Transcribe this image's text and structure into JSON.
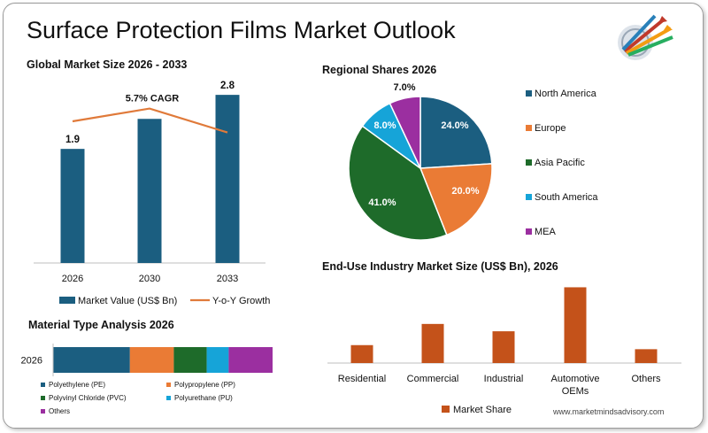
{
  "title": "Surface Protection Films Market Outlook",
  "website": "www.marketmindsadvisory.com",
  "colors": {
    "market_value": "#1b5e80",
    "growth_line": "#e07a3a",
    "north_america": "#1b5e80",
    "europe": "#ea7b35",
    "asia_pacific": "#1e6b2a",
    "south_america": "#16a4d8",
    "mea": "#9b2fa0",
    "end_use": "#c4521a"
  },
  "global": {
    "title": "Global Market Size 2026 - 2033",
    "cagr_label": "5.7% CAGR",
    "legend_value": "Market Value (US$ Bn)",
    "legend_growth": "Y-o-Y Growth"
  },
  "regional": {
    "title": "Regional Shares 2026"
  },
  "material": {
    "title": "Material Type Analysis 2026",
    "legend": [
      "Polyethylene (PE)",
      "Polypropylene (PP)",
      "Polyvinyl Chloride (PVC)",
      "Polyurethane (PU)",
      "Others"
    ]
  },
  "enduse": {
    "title": "End-Use Industry Market Size (US$ Bn), 2026",
    "legend": "Market Share"
  },
  "chart_data": [
    {
      "type": "bar",
      "title": "Global Market Size 2026 - 2033",
      "categories": [
        "2026",
        "2030",
        "2033"
      ],
      "series": [
        {
          "name": "Market Value (US$ Bn)",
          "values": [
            1.9,
            2.4,
            2.8
          ],
          "labels": [
            "1.9",
            "",
            "2.8"
          ]
        },
        {
          "name": "Y-o-Y Growth",
          "type": "line",
          "values": [
            0.85,
            0.93,
            0.78
          ]
        }
      ],
      "annotation": "5.7% CAGR",
      "ylim": [
        0,
        3.2
      ]
    },
    {
      "type": "pie",
      "title": "Regional Shares 2026",
      "categories": [
        "North America",
        "Europe",
        "Asia Pacific",
        "South America",
        "MEA"
      ],
      "values": [
        24.0,
        20.0,
        41.0,
        8.0,
        7.0
      ],
      "labels": [
        "24.0%",
        "20.0%",
        "41.0%",
        "8.0%",
        "7.0%"
      ],
      "legend": "right"
    },
    {
      "type": "bar",
      "orientation": "horizontal-stacked",
      "title": "Material Type Analysis 2026",
      "categories": [
        "2026"
      ],
      "series": [
        {
          "name": "Polyethylene (PE)",
          "values": [
            35
          ]
        },
        {
          "name": "Polypropylene (PP)",
          "values": [
            20
          ]
        },
        {
          "name": "Polyvinyl Chloride (PVC)",
          "values": [
            15
          ]
        },
        {
          "name": "Polyurethane (PU)",
          "values": [
            10
          ]
        },
        {
          "name": "Others",
          "values": [
            20
          ]
        }
      ]
    },
    {
      "type": "bar",
      "title": "End-Use Industry Market Size (US$ Bn), 2026",
      "categories": [
        "Residential",
        "Commercial",
        "Industrial",
        "Automotive OEMs",
        "Others"
      ],
      "series": [
        {
          "name": "Market Share",
          "values": [
            0.22,
            0.48,
            0.39,
            0.93,
            0.17
          ]
        }
      ],
      "ylim": [
        0,
        1
      ]
    }
  ]
}
